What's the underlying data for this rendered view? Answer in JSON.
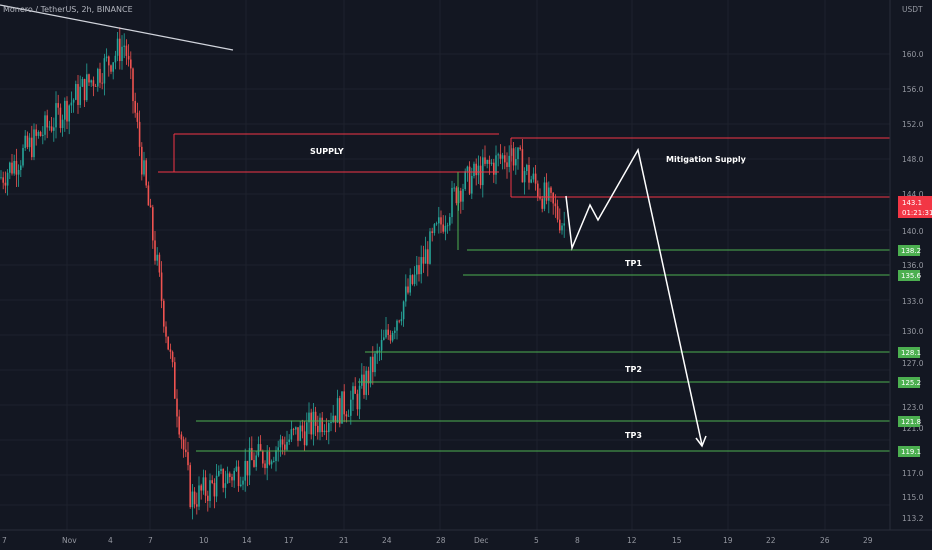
{
  "symbol_title": "Monero / TetherUS, 2h, BINANCE",
  "currency": "USDT",
  "colors": {
    "background": "#131722",
    "grid": "#1e222d",
    "up": "#26a69a",
    "down": "#ef5350",
    "supply": "#f23645",
    "target": "#4caf50",
    "path": "#ffffff",
    "axis_text": "#9598a1"
  },
  "chart_data": {
    "type": "candlestick",
    "title": "Monero / TetherUS, 2h, BINANCE",
    "ylabel": "USDT",
    "ylim": [
      112.6,
      164.6
    ],
    "grid": true,
    "y_ticks": [
      "160.0",
      "156.0",
      "152.0",
      "148.0",
      "144.0",
      "140.0",
      "136.0",
      "133.0",
      "130.0",
      "127.0",
      "123.0",
      "121.0",
      "117.0",
      "115.0",
      "113.2"
    ],
    "x_ticks": [
      "7",
      "Nov",
      "4",
      "7",
      "10",
      "14",
      "17",
      "21",
      "24",
      "28",
      "Dec",
      "5",
      "8",
      "12",
      "15",
      "19",
      "22",
      "26",
      "29"
    ],
    "current_price": {
      "value": "143.1",
      "countdown": "01:21:31"
    },
    "key_points": [
      {
        "date": "Oct 30",
        "price": 148.0
      },
      {
        "date": "Nov 5",
        "price": 161.7
      },
      {
        "date": "Nov 9",
        "price": 127.0
      },
      {
        "date": "Nov 10",
        "price": 115.3
      },
      {
        "date": "Nov 21",
        "price": 125.7
      },
      {
        "date": "Nov 29",
        "price": 147.0
      },
      {
        "date": "Dec 2",
        "price": 150.7
      },
      {
        "date": "Dec 7",
        "price": 143.1
      }
    ],
    "zones": [
      {
        "label": "SUPPLY",
        "top": 151.0,
        "bottom": 147.0
      },
      {
        "label": "Mitigation Supply",
        "top": 150.5,
        "bottom": 143.7
      }
    ],
    "targets": [
      {
        "label": "TP1",
        "upper": 138.2,
        "lower": 135.6
      },
      {
        "label": "TP2",
        "upper": 128.1,
        "lower": 125.2
      },
      {
        "label": "TP3",
        "upper": 121.8,
        "lower": 119.1
      }
    ],
    "projected_path": [
      143.7,
      138.5,
      143.0,
      141.5,
      149.5,
      120.2
    ]
  }
}
